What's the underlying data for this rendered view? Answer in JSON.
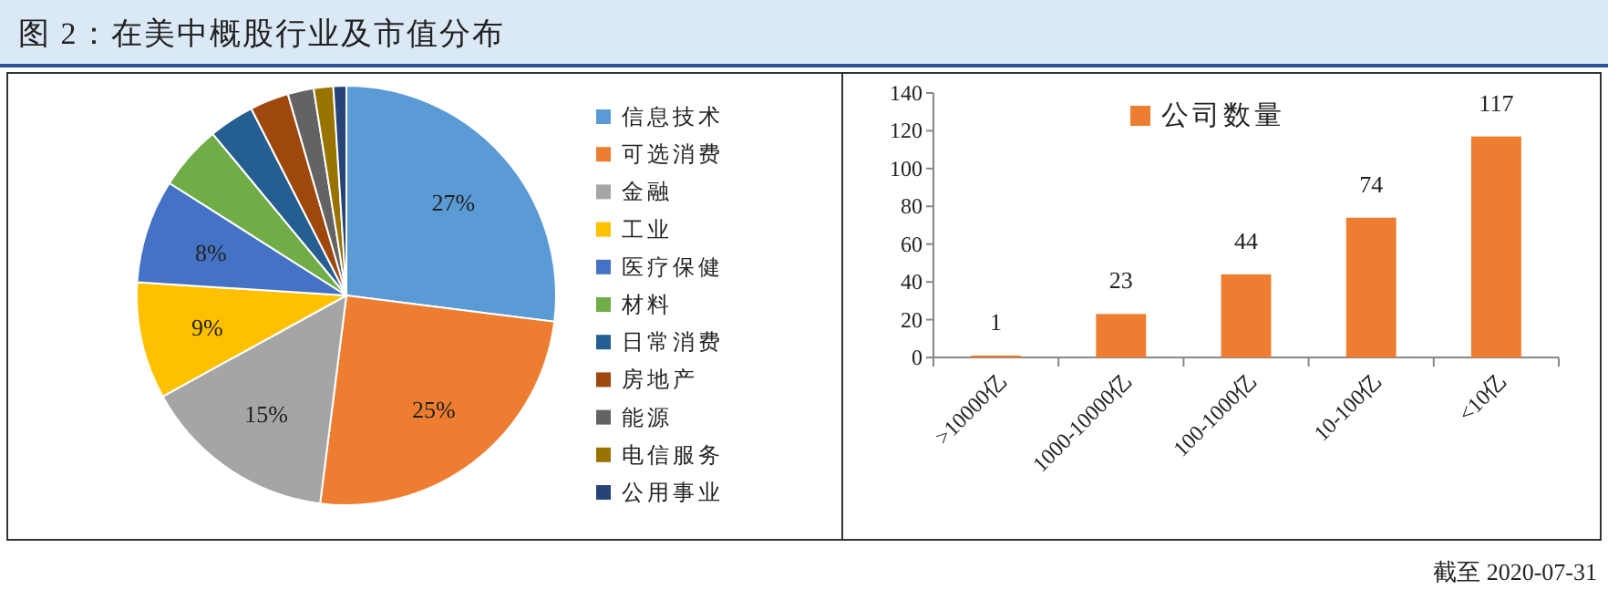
{
  "chart_data": [
    {
      "type": "pie",
      "title": "图 2：在美中概股行业及市值分布",
      "categories": [
        "信息技术",
        "可选消费",
        "金融",
        "工业",
        "医疗保健",
        "材料",
        "日常消费",
        "房地产",
        "能源",
        "电信服务",
        "公用事业"
      ],
      "values": [
        27,
        25,
        15,
        9,
        8,
        5,
        3.5,
        3,
        2,
        1.5,
        1
      ],
      "colors": [
        "#5b9bd5",
        "#ed7d31",
        "#a5a5a5",
        "#ffc000",
        "#4472c4",
        "#70ad47",
        "#255e91",
        "#9e480e",
        "#636363",
        "#997300",
        "#264478"
      ],
      "value_labels": [
        "27%",
        "25%",
        "15%",
        "9%",
        "8%",
        null,
        null,
        null,
        null,
        null,
        null
      ],
      "legend": "right"
    },
    {
      "type": "bar",
      "categories": [
        ">10000亿",
        "1000-10000亿",
        "100-1000亿",
        "10-100亿",
        "<10亿"
      ],
      "series": [
        {
          "name": "公司数量",
          "color": "#ed7d31",
          "values": [
            1,
            23,
            44,
            74,
            117
          ]
        }
      ],
      "ylim": [
        0,
        140
      ],
      "yticks": [
        0,
        20,
        40,
        60,
        80,
        100,
        120,
        140
      ],
      "data_labels": true,
      "legend": "top",
      "grid": false,
      "annotations": [
        "截至 2020-07-31"
      ]
    }
  ]
}
